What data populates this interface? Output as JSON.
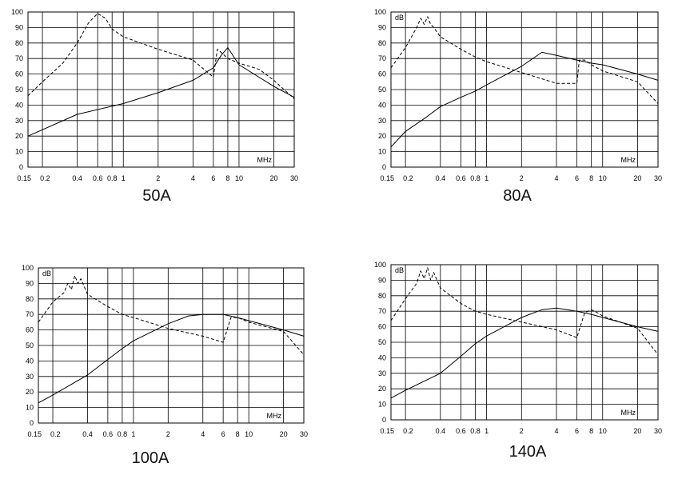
{
  "chart_data": [
    {
      "type": "line",
      "caption": "50A",
      "ylabel": "",
      "unit_label": "MHz",
      "xscale": "log",
      "xlim": [
        0.15,
        30
      ],
      "ylim": [
        0,
        100
      ],
      "yticks": [
        "0",
        "10",
        "20",
        "30",
        "40",
        "50",
        "60",
        "70",
        "80",
        "90",
        "100"
      ],
      "xticks": [
        "0.15",
        "0.2",
        "0.4",
        "0.6",
        "0.8",
        "1",
        "2",
        "4",
        "6",
        "8",
        "10",
        "20",
        "30"
      ],
      "grid": true,
      "series": [
        {
          "style": "solid",
          "x": [
            0.15,
            0.4,
            1,
            2,
            4,
            6,
            7,
            8,
            10,
            20,
            30
          ],
          "y": [
            20,
            34,
            41,
            48,
            56,
            64,
            72,
            77,
            66,
            52,
            45
          ]
        },
        {
          "style": "dashed",
          "x": [
            0.15,
            0.2,
            0.3,
            0.4,
            0.5,
            0.6,
            0.7,
            0.8,
            1,
            2,
            4,
            6,
            6.5,
            7,
            8,
            10,
            15,
            20,
            30
          ],
          "y": [
            46,
            55,
            67,
            80,
            93,
            99,
            96,
            89,
            84,
            76,
            69,
            58,
            76,
            74,
            70,
            67,
            63,
            56,
            44
          ]
        }
      ]
    },
    {
      "type": "line",
      "caption": "80A",
      "ylabel": "dB",
      "unit_label": "MHz",
      "xscale": "log",
      "xlim": [
        0.15,
        30
      ],
      "ylim": [
        0,
        100
      ],
      "yticks": [
        "0",
        "10",
        "20",
        "30",
        "40",
        "50",
        "60",
        "70",
        "80",
        "90",
        "100"
      ],
      "xticks": [
        "0.15",
        "0.2",
        "0.4",
        "0.6",
        "0.8",
        "1",
        "2",
        "4",
        "6",
        "8",
        "10",
        "20",
        "30"
      ],
      "grid": true,
      "series": [
        {
          "style": "solid",
          "x": [
            0.15,
            0.2,
            0.3,
            0.4,
            0.6,
            0.8,
            1,
            2,
            3,
            4,
            6,
            8,
            10,
            20,
            30
          ],
          "y": [
            13,
            23,
            32,
            39,
            45,
            49,
            53,
            65,
            74,
            72,
            69,
            67,
            66,
            60,
            56
          ]
        },
        {
          "style": "dashed",
          "x": [
            0.15,
            0.2,
            0.25,
            0.27,
            0.29,
            0.31,
            0.33,
            0.35,
            0.4,
            0.6,
            0.8,
            1,
            2,
            4,
            6,
            6.3,
            7,
            8,
            10,
            20,
            30
          ],
          "y": [
            64,
            77,
            90,
            96,
            92,
            97,
            92,
            90,
            84,
            76,
            71,
            68,
            61,
            54,
            54,
            69,
            69,
            66,
            62,
            55,
            41
          ]
        }
      ]
    },
    {
      "type": "line",
      "caption": "100A",
      "ylabel": "dB",
      "unit_label": "MHz",
      "xscale": "log",
      "xlim": [
        0.15,
        30
      ],
      "ylim": [
        0,
        100
      ],
      "yticks": [
        "0",
        "10",
        "20",
        "30",
        "40",
        "50",
        "60",
        "70",
        "80",
        "90",
        "100"
      ],
      "xticks": [
        "0.15",
        "0.2",
        "0.4",
        "0.6",
        "0.8",
        "1",
        "2",
        "4",
        "6",
        "8",
        "10",
        "20",
        "30"
      ],
      "grid": true,
      "series": [
        {
          "style": "solid",
          "x": [
            0.15,
            0.2,
            0.4,
            0.6,
            0.8,
            1,
            2,
            3,
            4,
            6,
            8,
            10,
            20,
            30
          ],
          "y": [
            13,
            18,
            31,
            41,
            48,
            53,
            64,
            69,
            70,
            70,
            68,
            66,
            60,
            56
          ]
        },
        {
          "style": "dashed",
          "x": [
            0.15,
            0.2,
            0.25,
            0.27,
            0.29,
            0.31,
            0.33,
            0.35,
            0.4,
            0.6,
            0.8,
            1,
            2,
            4,
            6,
            7,
            8,
            10,
            20,
            30
          ],
          "y": [
            65,
            78,
            84,
            90,
            86,
            95,
            90,
            93,
            83,
            75,
            70,
            68,
            61,
            56,
            52,
            68,
            68,
            65,
            59,
            44
          ]
        }
      ]
    },
    {
      "type": "line",
      "caption": "140A",
      "ylabel": "dB",
      "unit_label": "MHz",
      "xscale": "log",
      "xlim": [
        0.15,
        30
      ],
      "ylim": [
        0,
        100
      ],
      "yticks": [
        "0",
        "10",
        "20",
        "30",
        "40",
        "50",
        "60",
        "70",
        "80",
        "90",
        "100"
      ],
      "xticks": [
        "0.15",
        "0.2",
        "0.4",
        "0.6",
        "0.8",
        "1",
        "2",
        "4",
        "6",
        "8",
        "10",
        "20",
        "30"
      ],
      "grid": true,
      "series": [
        {
          "style": "solid",
          "x": [
            0.15,
            0.2,
            0.4,
            0.6,
            0.8,
            1,
            2,
            3,
            4,
            6,
            8,
            10,
            20,
            30
          ],
          "y": [
            14,
            19,
            30,
            41,
            49,
            54,
            66,
            71,
            72,
            70,
            68,
            66,
            60,
            57
          ]
        },
        {
          "style": "dashed",
          "x": [
            0.15,
            0.2,
            0.25,
            0.27,
            0.29,
            0.31,
            0.33,
            0.35,
            0.4,
            0.6,
            0.8,
            1,
            2,
            4,
            6,
            7,
            8,
            9,
            10,
            20,
            30
          ],
          "y": [
            64,
            78,
            88,
            96,
            91,
            98,
            90,
            95,
            85,
            75,
            70,
            68,
            63,
            58,
            53,
            69,
            71,
            69,
            67,
            59,
            42
          ]
        }
      ]
    }
  ]
}
